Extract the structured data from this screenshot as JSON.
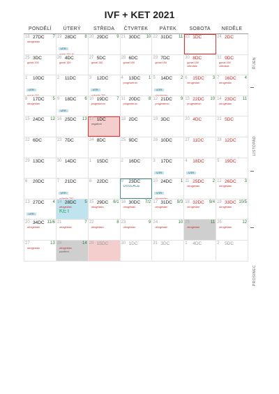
{
  "title": "IVF + KET 2021",
  "weekdays": [
    "PONDĚLÍ",
    "ÚTERÝ",
    "STŘEDA",
    "ČTVRTEK",
    "PÁTEK",
    "SOBOTA",
    "NEDĚLE"
  ],
  "months": [
    "ŘÍJEN",
    "LISTOPAD",
    "PROSINEC"
  ],
  "weeks": [
    [
      {
        "n": "18",
        "d": "27DC",
        "c": "7"
      },
      {
        "n": "19",
        "d": "28DC",
        "c": "8"
      },
      {
        "n": "20",
        "d": "29DC",
        "c": "9"
      },
      {
        "n": "21",
        "d": "30DC",
        "c": "10"
      },
      {
        "n": "22",
        "d": "31DC",
        "c": "11"
      },
      {
        "n": "23",
        "d": "1DC"
      },
      {
        "n": "24",
        "d": "2DC"
      }
    ],
    [
      {
        "n": "25",
        "d": "3DC"
      },
      {
        "n": "26",
        "d": "4DC"
      },
      {
        "n": "27",
        "d": "5DC"
      },
      {
        "n": "28",
        "d": "6DC"
      },
      {
        "n": "29",
        "d": "7DC"
      },
      {
        "n": "30",
        "d": "8DC"
      },
      {
        "n": "31",
        "d": "9DC"
      }
    ],
    [
      {
        "n": "1",
        "d": "10DC"
      },
      {
        "n": "2",
        "d": "11DC"
      },
      {
        "n": "3",
        "d": "12DC"
      },
      {
        "n": "4",
        "d": "13DC",
        "c": "1"
      },
      {
        "n": "5",
        "d": "14DC",
        "c": "2"
      },
      {
        "n": "6",
        "d": "15DC",
        "c": "3"
      },
      {
        "n": "7",
        "d": "16DC",
        "c": "4"
      }
    ],
    [
      {
        "n": "8",
        "d": "17DC",
        "c": "5"
      },
      {
        "n": "9",
        "d": "18DC",
        "c": "6"
      },
      {
        "n": "10",
        "d": "19DC",
        "c": "7"
      },
      {
        "n": "11",
        "d": "20DC",
        "c": "8"
      },
      {
        "n": "12",
        "d": "21DC",
        "c": "9"
      },
      {
        "n": "13",
        "d": "22DC",
        "c": "10"
      },
      {
        "n": "14",
        "d": "23DC",
        "c": "11"
      }
    ],
    [
      {
        "n": "15",
        "d": "24DC",
        "c": "12"
      },
      {
        "n": "16",
        "d": "25DC",
        "c": "13"
      },
      {
        "n": "17",
        "d": "1DC"
      },
      {
        "n": "18",
        "d": "2DC"
      },
      {
        "n": "19",
        "d": "3DC"
      },
      {
        "n": "20",
        "d": "4DC"
      },
      {
        "n": "21",
        "d": "5DC"
      }
    ],
    [
      {
        "n": "22",
        "d": "6DC"
      },
      {
        "n": "23",
        "d": "7DC"
      },
      {
        "n": "24",
        "d": "8DC"
      },
      {
        "n": "25",
        "d": "9DC"
      },
      {
        "n": "26",
        "d": "10DC"
      },
      {
        "n": "27",
        "d": "11DC"
      },
      {
        "n": "28",
        "d": "12DC"
      }
    ],
    [
      {
        "n": "29",
        "d": "13DC"
      },
      {
        "n": "30",
        "d": "14DC"
      },
      {
        "n": "1",
        "d": "15DC"
      },
      {
        "n": "2",
        "d": "16DC"
      },
      {
        "n": "3",
        "d": "17DC"
      },
      {
        "n": "4",
        "d": "18DC"
      },
      {
        "n": "5",
        "d": "19DC"
      }
    ],
    [
      {
        "n": "6",
        "d": "20DC"
      },
      {
        "n": "7",
        "d": "21DC"
      },
      {
        "n": "8",
        "d": "22DC"
      },
      {
        "n": "9",
        "d": "23DC"
      },
      {
        "n": "10",
        "d": "24DC",
        "c": "1"
      },
      {
        "n": "11",
        "d": "25DC",
        "c": "2"
      },
      {
        "n": "12",
        "d": "26DC",
        "c": "3"
      }
    ],
    [
      {
        "n": "13",
        "d": "27DC",
        "c": "4"
      },
      {
        "n": "14",
        "d": "28DC",
        "c": "5"
      },
      {
        "n": "15",
        "d": "29DC",
        "c": "6/1"
      },
      {
        "n": "16",
        "d": "30DC",
        "c": "7/2"
      },
      {
        "n": "17",
        "d": "31DC",
        "c": "8/3"
      },
      {
        "n": "18",
        "d": "32DC",
        "c": "9/4"
      },
      {
        "n": "19",
        "d": "33DC",
        "c": "10/5"
      }
    ],
    [
      {
        "n": "20",
        "d": "34DC",
        "c": "11/6"
      },
      {
        "n": "21",
        "d": "",
        "c": "7"
      },
      {
        "n": "22",
        "d": "",
        "c": "8"
      },
      {
        "n": "23",
        "d": "",
        "c": "9"
      },
      {
        "n": "24",
        "d": "",
        "c": "10"
      },
      {
        "n": "25",
        "d": "",
        "c": "11"
      },
      {
        "n": "26",
        "d": "",
        "c": "12"
      }
    ],
    [
      {
        "n": "27",
        "d": "",
        "c": "13"
      },
      {
        "n": "28",
        "d": "",
        "c": "14"
      },
      {
        "n": "29",
        "d": "15DC"
      },
      {
        "n": "30",
        "d": "1DC"
      },
      {
        "n": "31",
        "d": "3DC"
      },
      {
        "n": "1",
        "d": "4DC"
      },
      {
        "n": "2",
        "d": "5DC"
      }
    ]
  ],
  "notes": {
    "w1c1": [
      "utrogestan",
      "",
      ""
    ],
    "w1c2": [
      "gonal 150 IU",
      ""
    ],
    "w2c1": [
      "gonal 150"
    ],
    "w2c2": [
      "gonal 150"
    ],
    "w2c3": [
      "gonal 150"
    ],
    "w2c4": [
      "gonal 150"
    ],
    "w2c5": [
      "gonal 150"
    ],
    "w2c6": [
      "gonal 150",
      "cetrotide"
    ],
    "w2c7": [
      "gonal 150",
      "cetrotide"
    ],
    "w3c1": [
      "gonal 150",
      "cetrotide",
      "ovitrelle 250",
      "utrogestan"
    ],
    "w3c3": [
      "ovitrelle 250",
      "progesteron"
    ],
    "w3c4": [
      "progesteron"
    ],
    "w3c5": [
      "utrogestan"
    ],
    "w3c6": [
      "utrogestan"
    ],
    "w3c7": [
      "utrogestan"
    ],
    "w4c1": [
      "utrogestan"
    ],
    "w4c2": [
      "utrogestan"
    ],
    "w4c3": [
      "progesteron"
    ],
    "w4c4": [
      "progesteron"
    ],
    "w4c5": [
      "progesteron"
    ],
    "w4c6": [
      "progesteron"
    ],
    "w4c7": [
      "utrogestan"
    ],
    "w5c3": [
      "negativní"
    ],
    "w7c5": [
      "utrogestan"
    ],
    "w7c6": [
      "utrogestan"
    ],
    "w8c2": [
      "ovitrelle 250",
      "utrogestan"
    ],
    "w8c5": [
      "utrogestan"
    ],
    "w8c6": [
      "utrogestan"
    ],
    "w8c7": [
      "utrogestan"
    ],
    "w9c1": [
      "utrogestan"
    ],
    "w9c2": [
      "utrogestan"
    ],
    "w9c3": [
      "utrogestan"
    ],
    "w9c4": [
      "utrogestan"
    ],
    "w9c5": [
      "utrogestan"
    ],
    "w9c6": [
      "utrogestan"
    ],
    "w9c7": [
      "utrogestan"
    ],
    "w10c1": [
      "utrogestan"
    ],
    "w10c2": [
      "utrogestan"
    ],
    "w10c3": [
      "utrogestan"
    ],
    "w10c4": [
      "utrogestan"
    ],
    "w10c5": [
      "utrogestan"
    ],
    "w10c6": [
      "utrogestan"
    ],
    "w10c7": [
      "utrogestan"
    ],
    "w11c1": [
      "utrogestan"
    ],
    "w11c2": [
      "utrogestan"
    ]
  },
  "tags": {
    "w1c2": "UTR",
    "w3c1": "UTR",
    "w3c3": "UTR",
    "w3c5": "UTR",
    "w4c2": "UTR",
    "w7c5": "UTR",
    "w7c6": "UTR",
    "w8c2": "UTR",
    "w8c5": "UTR",
    "w9c1": "UTR"
  },
  "labels": {
    "ket": "KET",
    "pozitivni": "pozitivní",
    "ovulace": "OVULACE"
  }
}
